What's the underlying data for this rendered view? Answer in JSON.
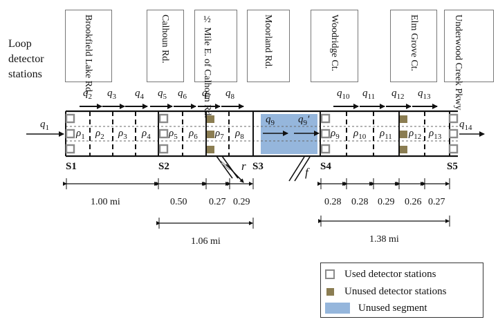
{
  "header": {
    "loop_label_line1": "Loop",
    "loop_label_line2": "detector",
    "loop_label_line3": "stations"
  },
  "stations": [
    {
      "name": "Brookfield Lake Rd."
    },
    {
      "name": "Calhoun Rd."
    },
    {
      "name": "½ Mile E. of Calhoun Rd."
    },
    {
      "name": "Moorland Rd."
    },
    {
      "name": "Woodridge Ct."
    },
    {
      "name": "Elm Grove Ct."
    },
    {
      "name": "Underwood Creek Pkwy"
    }
  ],
  "section_labels": [
    "S1",
    "S2",
    "S3",
    "S4",
    "S5"
  ],
  "flows": {
    "q1": "q1",
    "q2": "q2",
    "q3": "q3",
    "q4": "q4",
    "q5": "q5",
    "q6": "q6",
    "q7": "q7",
    "q8": "q8",
    "q9": "q9",
    "q9p": "q9′",
    "q10": "q10",
    "q11": "q11",
    "q12": "q12",
    "q13": "q13",
    "q14": "q14"
  },
  "densities": [
    "ρ1",
    "ρ2",
    "ρ3",
    "ρ4",
    "ρ5",
    "ρ6",
    "ρ7",
    "ρ8",
    "ρ9",
    "ρ10",
    "ρ11",
    "ρ12",
    "ρ13"
  ],
  "ramps": {
    "onramp": "r",
    "offramp": "f"
  },
  "distances": {
    "d1": "1.00 mi",
    "d2": "0.50",
    "d3": "0.27",
    "d4": "0.29",
    "d5": "0.28",
    "d6": "0.28",
    "d7": "0.29",
    "d8": "0.26",
    "d9": "0.27",
    "total_mid": "1.06 mi",
    "total_right": "1.38 mi"
  },
  "legend": {
    "used": "Used detector stations",
    "unused": "Unused detector stations",
    "segment": "Unused segment"
  },
  "colors": {
    "used_station": "#8a8a8a",
    "unused_station": "#8b7d52",
    "unused_segment": "#95b6dc"
  }
}
